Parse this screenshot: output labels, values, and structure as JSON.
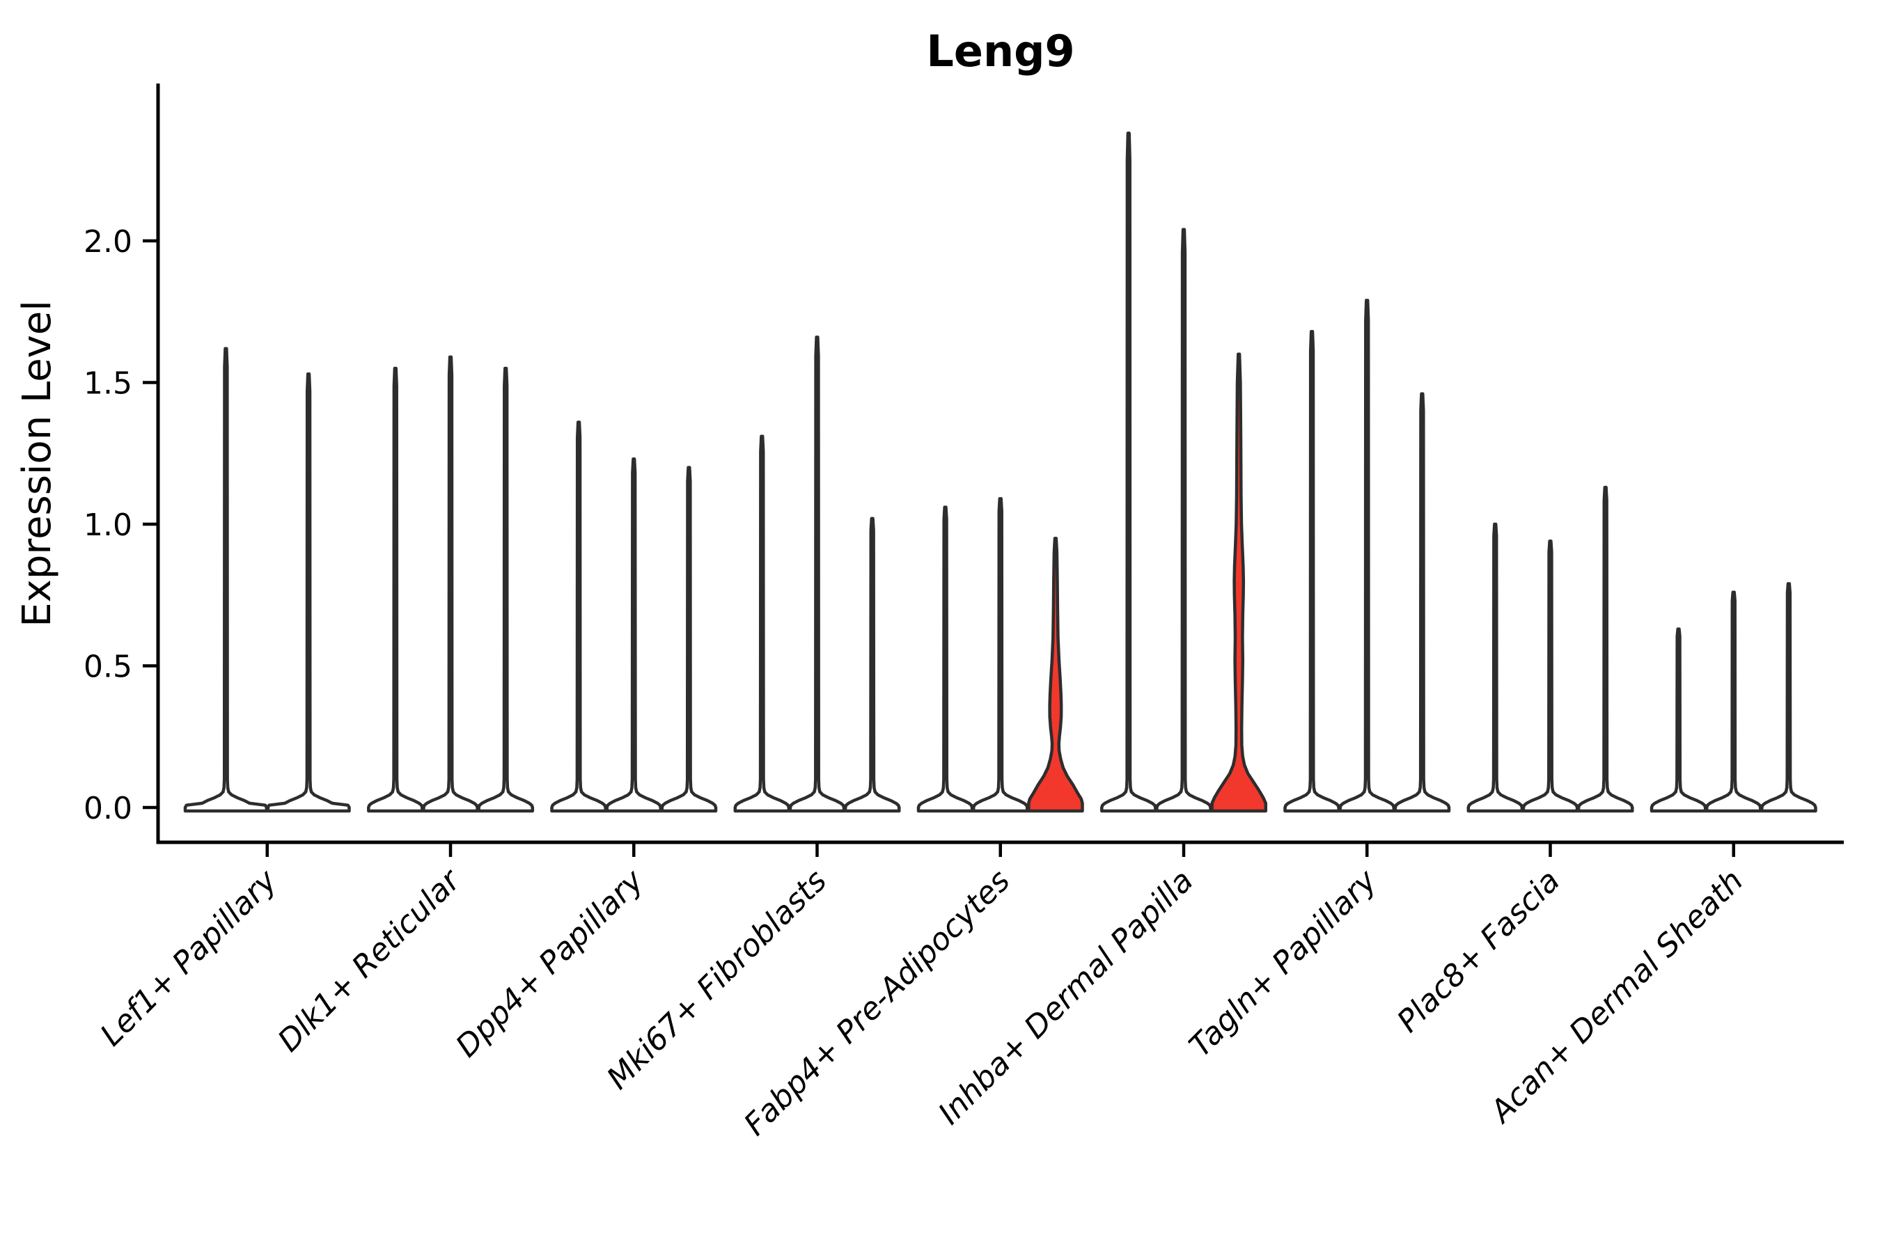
{
  "title": "Leng9",
  "colors": {
    "outline": "#2d2d2d",
    "spine": "#000000",
    "violin_fill": "#ffffff",
    "highlight_fill": "#f2382c",
    "background": "#ffffff"
  },
  "chart_data": {
    "type": "violin",
    "title": "Leng9",
    "xlabel": "",
    "ylabel": "Expression Level",
    "ylim": [
      0,
      2.55
    ],
    "grid": false,
    "legend": "none",
    "ytick_labels": [
      "0.0",
      "0.5",
      "1.0",
      "1.5",
      "2.0"
    ],
    "ytick_values": [
      0,
      0.5,
      1.0,
      1.5,
      2.0
    ],
    "categories": [
      "Lef1+ Papillary",
      "Dlk1+ Reticular",
      "Dpp4+ Papillary",
      "Mki67+ Fibroblasts",
      "Fabp4+ Pre-Adipocytes",
      "Inhba+ Dermal Papilla",
      "Tagln+ Papillary",
      "Plac8+ Fascia",
      "Acan+ Dermal Sheath"
    ],
    "groups": [
      {
        "label": "Lef1+ Papillary",
        "violins": [
          {
            "max": 1.62,
            "highlighted": false
          },
          {
            "max": 1.53,
            "highlighted": false
          }
        ]
      },
      {
        "label": "Dlk1+ Reticular",
        "violins": [
          {
            "max": 1.55,
            "highlighted": false
          },
          {
            "max": 1.59,
            "highlighted": false
          },
          {
            "max": 1.55,
            "highlighted": false
          }
        ]
      },
      {
        "label": "Dpp4+ Papillary",
        "violins": [
          {
            "max": 1.36,
            "highlighted": false
          },
          {
            "max": 1.23,
            "highlighted": false
          },
          {
            "max": 1.2,
            "highlighted": false
          }
        ]
      },
      {
        "label": "Mki67+ Fibroblasts",
        "violins": [
          {
            "max": 1.31,
            "highlighted": false
          },
          {
            "max": 1.66,
            "highlighted": false
          },
          {
            "max": 1.02,
            "highlighted": false
          }
        ]
      },
      {
        "label": "Fabp4+ Pre-Adipocytes",
        "violins": [
          {
            "max": 1.06,
            "highlighted": false
          },
          {
            "max": 1.09,
            "highlighted": false
          },
          {
            "max": 0.95,
            "highlighted": true,
            "profile": [
              [
                0.95,
                0.9
              ],
              [
                0.9,
                2.0
              ],
              [
                0.8,
                2.6
              ],
              [
                0.7,
                3.0
              ],
              [
                0.6,
                3.6
              ],
              [
                0.52,
                5.0
              ],
              [
                0.45,
                6.8
              ],
              [
                0.4,
                7.8
              ],
              [
                0.36,
                8.3
              ],
              [
                0.32,
                8.2
              ],
              [
                0.28,
                7.0
              ],
              [
                0.25,
                5.6
              ],
              [
                0.225,
                4.8
              ],
              [
                0.2,
                5.2
              ],
              [
                0.17,
                7.5
              ],
              [
                0.14,
                11
              ],
              [
                0.11,
                17
              ],
              [
                0.08,
                25
              ],
              [
                0.05,
                32
              ],
              [
                0.03,
                37
              ],
              [
                0.015,
                40
              ],
              [
                0,
                41
              ]
            ]
          }
        ]
      },
      {
        "label": "Inhba+ Dermal Papilla",
        "violins": [
          {
            "max": 2.38,
            "highlighted": false
          },
          {
            "max": 2.04,
            "highlighted": false
          },
          {
            "max": 1.6,
            "highlighted": true,
            "profile": [
              [
                1.6,
                0.9
              ],
              [
                1.5,
                2.2
              ],
              [
                1.3,
                2.8
              ],
              [
                1.1,
                3.2
              ],
              [
                1.0,
                3.8
              ],
              [
                0.92,
                5.0
              ],
              [
                0.85,
                6.2
              ],
              [
                0.8,
                6.6
              ],
              [
                0.75,
                6.4
              ],
              [
                0.68,
                5.6
              ],
              [
                0.6,
                5.2
              ],
              [
                0.52,
                5.6
              ],
              [
                0.45,
                5.2
              ],
              [
                0.36,
                4.4
              ],
              [
                0.28,
                4.0
              ],
              [
                0.22,
                4.2
              ],
              [
                0.18,
                5.5
              ],
              [
                0.15,
                8
              ],
              [
                0.12,
                13
              ],
              [
                0.09,
                21
              ],
              [
                0.06,
                29
              ],
              [
                0.035,
                35
              ],
              [
                0.015,
                39.5
              ],
              [
                0,
                40.5
              ]
            ]
          }
        ]
      },
      {
        "label": "Tagln+ Papillary",
        "violins": [
          {
            "max": 1.68,
            "highlighted": false
          },
          {
            "max": 1.79,
            "highlighted": false
          },
          {
            "max": 1.46,
            "highlighted": false
          }
        ]
      },
      {
        "label": "Plac8+ Fascia",
        "violins": [
          {
            "max": 1.0,
            "highlighted": false
          },
          {
            "max": 0.94,
            "highlighted": false
          },
          {
            "max": 1.13,
            "highlighted": false
          }
        ]
      },
      {
        "label": "Acan+ Dermal Sheath",
        "violins": [
          {
            "max": 0.63,
            "highlighted": false
          },
          {
            "max": 0.76,
            "highlighted": false
          },
          {
            "max": 0.79,
            "highlighted": false
          }
        ]
      }
    ]
  }
}
